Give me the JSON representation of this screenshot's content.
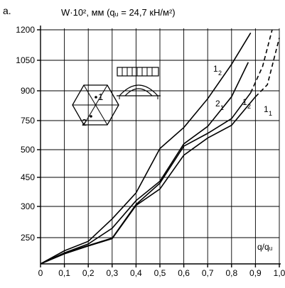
{
  "chart_data": {
    "type": "line",
    "panel_label": "a.",
    "title": "W·10², мм  (qᵤ = 24,7 кН/м²)",
    "xlabel": "q/qᵤ",
    "ylabel": "",
    "x_ticks": [
      "0",
      "0,1",
      "0,2",
      "0,3",
      "0,4",
      "0,5",
      "0,6",
      "0,7",
      "0,8",
      "0,9",
      "1,0"
    ],
    "y_ticks": [
      "250",
      "300",
      "450",
      "500",
      "750",
      "900",
      "1050",
      "1200"
    ],
    "series": [
      {
        "name": "1₂",
        "label_main": "1",
        "label_sub": "2",
        "points": [
          [
            0,
            0
          ],
          [
            0.1,
            125
          ],
          [
            0.2,
            215
          ],
          [
            0.3,
            280
          ],
          [
            0.4,
            370
          ],
          [
            0.5,
            510
          ],
          [
            0.6,
            690
          ],
          [
            0.7,
            860
          ],
          [
            0.8,
            1030
          ],
          [
            0.88,
            1185
          ]
        ]
      },
      {
        "name": "2₁",
        "label_main": "2",
        "label_sub": "1",
        "points": [
          [
            0,
            0
          ],
          [
            0.1,
            105
          ],
          [
            0.2,
            190
          ],
          [
            0.3,
            265
          ],
          [
            0.4,
            330
          ],
          [
            0.5,
            430
          ],
          [
            0.6,
            550
          ],
          [
            0.7,
            700
          ],
          [
            0.8,
            870
          ],
          [
            0.87,
            1040
          ]
        ]
      },
      {
        "name": "1₂",
        "label_main": "1",
        "label_sub": "2",
        "points": [
          [
            0,
            0
          ],
          [
            0.1,
            100
          ],
          [
            0.2,
            175
          ],
          [
            0.3,
            245
          ],
          [
            0.4,
            310
          ],
          [
            0.5,
            420
          ],
          [
            0.6,
            530
          ],
          [
            0.7,
            640
          ],
          [
            0.8,
            760
          ],
          [
            0.88,
            890
          ]
        ],
        "dashed_tail": [
          [
            0.88,
            890
          ],
          [
            0.93,
            1020
          ],
          [
            0.97,
            1200
          ]
        ]
      },
      {
        "name": "1₁",
        "label_main": "1",
        "label_sub": "1",
        "points": [
          [
            0,
            0
          ],
          [
            0.1,
            95
          ],
          [
            0.2,
            170
          ],
          [
            0.3,
            240
          ],
          [
            0.4,
            305
          ],
          [
            0.5,
            390
          ],
          [
            0.6,
            490
          ],
          [
            0.7,
            600
          ],
          [
            0.8,
            710
          ],
          [
            0.9,
            870
          ]
        ],
        "dashed_tail": [
          [
            0.9,
            870
          ],
          [
            0.95,
            930
          ],
          [
            1.0,
            1160
          ]
        ]
      }
    ],
    "inset": {
      "hexagon_points": [
        "1",
        "2"
      ]
    }
  }
}
